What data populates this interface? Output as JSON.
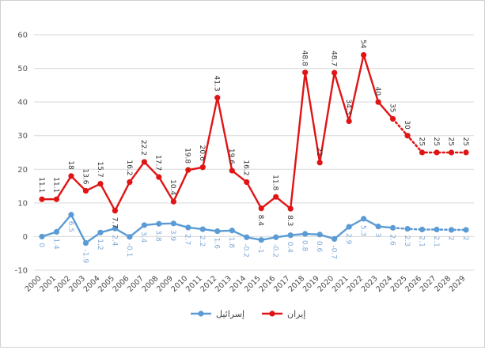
{
  "chart_data": {
    "type": "line",
    "categories": [
      "2000",
      "2001",
      "2002",
      "2003",
      "2004",
      "2005",
      "2006",
      "2007",
      "2008",
      "2009",
      "2010",
      "2011",
      "2012",
      "2013",
      "2014",
      "2015",
      "2016",
      "2017",
      "2018",
      "2019",
      "2020",
      "2021",
      "2022",
      "2023",
      "2024",
      "2025",
      "2026",
      "2027",
      "2028",
      "2029"
    ],
    "ylim": [
      -10,
      60
    ],
    "yticks": [
      -10,
      0,
      10,
      20,
      30,
      40,
      50,
      60
    ],
    "grid": true,
    "legend_position": "bottom-center",
    "projection_start_index": 24,
    "series": [
      {
        "name": "إيران",
        "color": "#e01414",
        "values": [
          11.1,
          11.1,
          18,
          13.6,
          15.7,
          7.7,
          16.2,
          22.2,
          17.7,
          10.4,
          19.8,
          20.6,
          41.3,
          19.6,
          16.2,
          8.4,
          11.8,
          8.3,
          48.8,
          22,
          48.7,
          34.3,
          54,
          40,
          35,
          30,
          25,
          25,
          25,
          25
        ],
        "labels": [
          "11.1",
          "11.1",
          "18",
          "13.6",
          "15.7",
          "7.7",
          "16.2",
          "22.2",
          "17.7",
          "10.4",
          "19.8",
          "20.6",
          "41.3",
          "19.6",
          "16.2",
          "8.4",
          "11.8",
          "8.3",
          "48.8",
          "22",
          "48.7",
          "34.3",
          "54",
          "40",
          "35",
          "30",
          "25",
          "25",
          "25",
          "25"
        ]
      },
      {
        "name": "إسرائيل",
        "color": "#5b9bd5",
        "values": [
          0,
          1.4,
          6.5,
          -1.9,
          1.2,
          2.4,
          -0.1,
          3.4,
          3.8,
          3.9,
          2.7,
          2.2,
          1.6,
          1.8,
          -0.2,
          -1,
          -0.2,
          0.4,
          0.8,
          0.6,
          -0.7,
          2.9,
          5.3,
          3,
          2.6,
          2.3,
          2.1,
          2.1,
          2,
          2
        ],
        "labels": [
          "0",
          "1.4",
          "6.5",
          "-1.9",
          "1.2",
          "2.4",
          "-0.1",
          "3.4",
          "3.8",
          "3.9",
          "2.7",
          "2.2",
          "1.6",
          "1.8",
          "-0.2",
          "-1",
          "-0.2",
          "0.4",
          "0.8",
          "0.6",
          "-0.7",
          "2.9",
          "5.3",
          "3",
          "2.6",
          "2.3",
          "2.1",
          "2.1",
          "2",
          "2"
        ]
      }
    ]
  }
}
